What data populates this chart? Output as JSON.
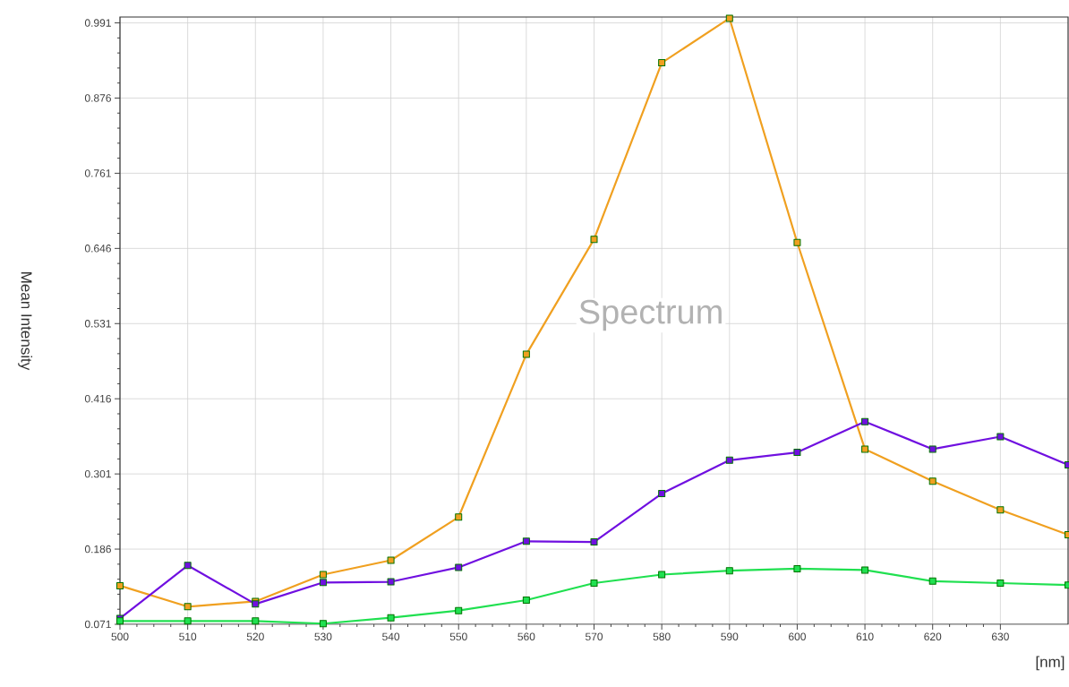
{
  "chart_data": {
    "type": "line",
    "title": "Spectrum",
    "xlabel": "[nm]",
    "ylabel": "Mean Intensity",
    "x": [
      500,
      510,
      520,
      530,
      540,
      550,
      560,
      570,
      580,
      590,
      600,
      610,
      620,
      630,
      640
    ],
    "series": [
      {
        "color": "#f0a020",
        "values": [
          0.13,
          0.098,
          0.106,
          0.147,
          0.169,
          0.235,
          0.484,
          0.66,
          0.93,
          0.998,
          0.655,
          0.339,
          0.29,
          0.246,
          0.208
        ]
      },
      {
        "color": "#7010e0",
        "values": [
          0.08,
          0.161,
          0.102,
          0.135,
          0.136,
          0.158,
          0.198,
          0.197,
          0.271,
          0.322,
          0.334,
          0.381,
          0.339,
          0.358,
          0.315
        ]
      },
      {
        "color": "#20e050",
        "values": [
          0.076,
          0.076,
          0.076,
          0.072,
          0.081,
          0.092,
          0.108,
          0.134,
          0.147,
          0.153,
          0.156,
          0.154,
          0.137,
          0.134,
          0.131
        ]
      }
    ],
    "xlim": [
      500,
      640
    ],
    "ylim": [
      0.071,
      1.0
    ],
    "xticks": [
      500,
      510,
      520,
      530,
      540,
      550,
      560,
      570,
      580,
      590,
      600,
      610,
      620,
      630
    ],
    "yticks": [
      0.071,
      0.186,
      0.301,
      0.416,
      0.531,
      0.646,
      0.761,
      0.876,
      0.991
    ],
    "grid": true,
    "marker": "square",
    "line_style": "solid"
  }
}
